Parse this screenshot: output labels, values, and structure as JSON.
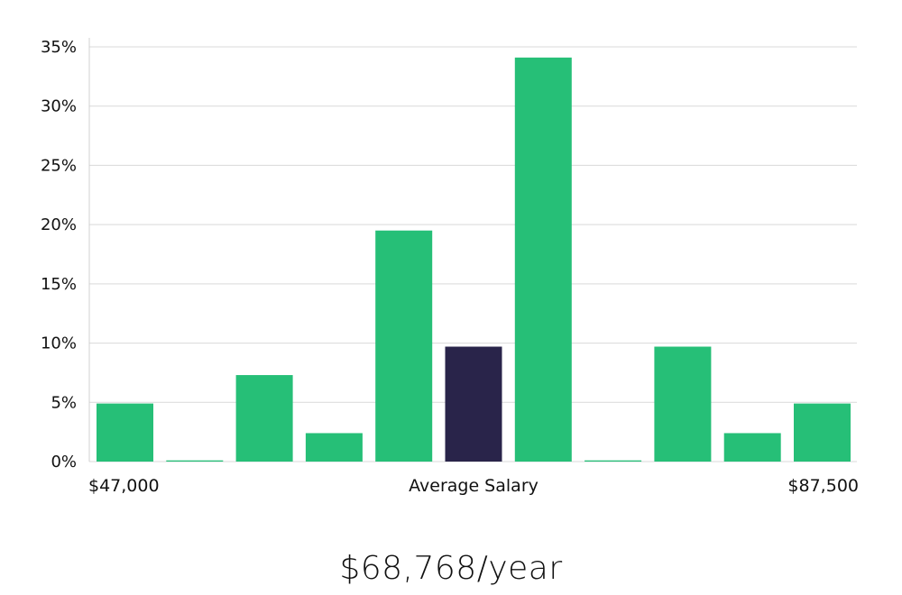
{
  "chart_data": {
    "type": "bar",
    "categories": [
      "1",
      "2",
      "3",
      "4",
      "5",
      "6",
      "7",
      "8",
      "9",
      "10",
      "11"
    ],
    "values": [
      4.9,
      0.1,
      7.3,
      2.4,
      19.5,
      9.7,
      34.1,
      0.1,
      9.7,
      2.4,
      4.9
    ],
    "highlight_index": 5,
    "ylim": [
      0,
      35
    ],
    "yticks": [
      "0%",
      "5%",
      "10%",
      "15%",
      "20%",
      "25%",
      "30%",
      "35%"
    ],
    "ytick_values": [
      0,
      5,
      10,
      15,
      20,
      25,
      30,
      35
    ],
    "grid": true,
    "colors": {
      "bar": "#26bf77",
      "highlight": "#29244a",
      "grid": "#d9d9d9"
    },
    "x_left_label": "$47,000",
    "x_center_label": "Average Salary",
    "x_right_label": "$87,500"
  },
  "average_salary": "$68,768/year"
}
